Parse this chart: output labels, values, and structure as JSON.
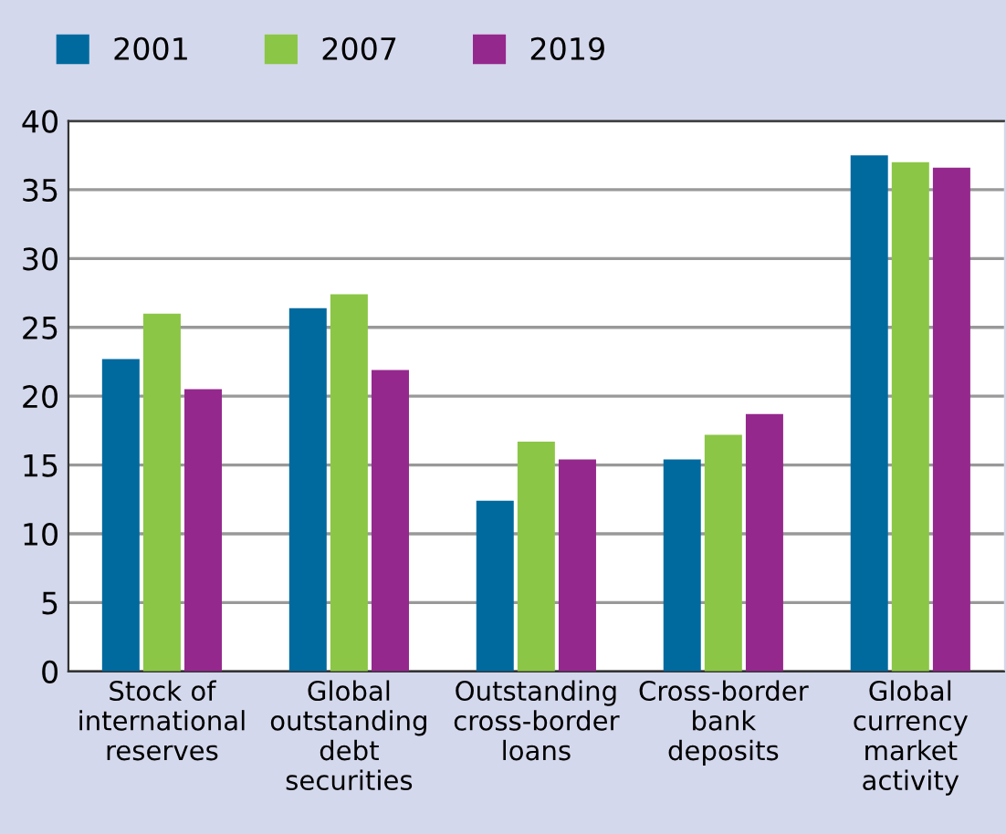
{
  "chart_data": {
    "type": "bar",
    "categories": [
      "Stock of\ninternational\nreserves",
      "Global\noutstanding\ndebt\nsecurities",
      "Outstanding\ncross-border\nloans",
      "Cross-border\nbank\ndeposits",
      "Global\ncurrency\nmarket\nactivity"
    ],
    "series": [
      {
        "name": "2001",
        "color": "#006a9f",
        "values": [
          22.7,
          26.4,
          12.4,
          15.4,
          37.5
        ]
      },
      {
        "name": "2007",
        "color": "#8bc646",
        "values": [
          26.0,
          27.4,
          16.7,
          17.2,
          37.0
        ]
      },
      {
        "name": "2019",
        "color": "#95288d",
        "values": [
          20.5,
          21.9,
          15.4,
          18.7,
          36.6
        ]
      }
    ],
    "ylim": [
      0,
      40
    ],
    "yticks": [
      0,
      5,
      10,
      15,
      20,
      25,
      30,
      35,
      40
    ],
    "grid": "y",
    "legend": "top left"
  }
}
